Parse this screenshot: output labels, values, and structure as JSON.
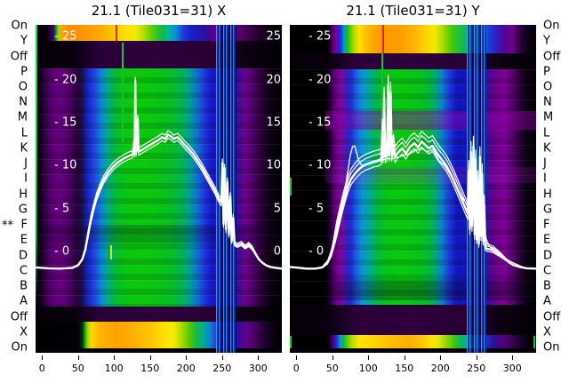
{
  "figure": {
    "background": "#ffffff",
    "text_color": "#000000",
    "curve_color": "#ffffff",
    "inside_tick_label_color": "#ffffff"
  },
  "row_axis": {
    "labels": [
      "On",
      "Y",
      "Off",
      "P",
      "O",
      "N",
      "M",
      "L",
      "K",
      "J",
      "I",
      "H",
      "G",
      "F",
      "E",
      "D",
      "C",
      "B",
      "A",
      "Off",
      "X",
      "On"
    ],
    "star_marker": {
      "text": "**",
      "row": "F",
      "side": "left"
    }
  },
  "chart_data": [
    {
      "type": "heatmap",
      "title": "21.1 (Tile031=31) X",
      "x_ticks": [
        0,
        50,
        100,
        150,
        200,
        250,
        300
      ],
      "x_range": [
        -9,
        333
      ],
      "y_tick_values": [
        25,
        20,
        15,
        10,
        5,
        0
      ],
      "y_tick_labels_left": [
        "- 25",
        "- 20",
        "- 15",
        "- 10",
        "- 5",
        "- 0"
      ],
      "y_tick_labels_right": [
        "25",
        "20",
        "15",
        "10",
        "5",
        "0"
      ],
      "colormap": "dark spectral: black>purple>blue>cyan>green>yellow>orange>red",
      "heatmap_bands": [
        {
          "rows": "On/Y",
          "profile": "high band: orange/yellow center, green-cyan-blue-purple flanks, red line at x~102"
        },
        {
          "rows": "Off",
          "profile": "near zero: black with faint purple strip"
        },
        {
          "rows": "P-A",
          "profile": "mid values: green core x~100-205, cyan/blue flanks, purple columns, black edges, bright blue/cyan vertical streaks x~242-270"
        },
        {
          "rows": "Off",
          "profile": "near zero"
        },
        {
          "rows": "X/On",
          "profile": "high band: yellow/orange center starting sharply at x~60"
        }
      ],
      "series": [
        {
          "name": "beam-profile-x",
          "points": [
            [
              -9,
              -1.85
            ],
            [
              8,
              -1.95
            ],
            [
              25,
              -2.0
            ],
            [
              42,
              -1.9
            ],
            [
              50,
              -1.6
            ],
            [
              56,
              -0.9
            ],
            [
              60,
              0.2
            ],
            [
              64,
              2.0
            ],
            [
              68,
              3.8
            ],
            [
              72,
              5.2
            ],
            [
              76,
              6.4
            ],
            [
              81,
              7.5
            ],
            [
              86,
              8.4
            ],
            [
              92,
              9.2
            ],
            [
              99,
              9.9
            ],
            [
              106,
              10.4
            ],
            [
              113,
              10.8
            ],
            [
              120,
              11.1
            ],
            [
              126,
              11.3
            ],
            [
              127.5,
              12.6
            ],
            [
              128.5,
              11.4
            ],
            [
              129.5,
              19.8
            ],
            [
              130.5,
              11.5
            ],
            [
              132,
              13.2
            ],
            [
              133,
              15.4
            ],
            [
              134,
              11.6
            ],
            [
              138,
              11.8
            ],
            [
              144,
              12.1
            ],
            [
              150,
              12.4
            ],
            [
              156,
              12.7
            ],
            [
              162,
              13.0
            ],
            [
              167,
              13.3
            ],
            [
              171,
              13.1
            ],
            [
              175,
              13.6
            ],
            [
              179,
              13.4
            ],
            [
              183,
              13.1
            ],
            [
              188,
              13.3
            ],
            [
              193,
              12.9
            ],
            [
              198,
              12.4
            ],
            [
              204,
              11.9
            ],
            [
              210,
              11.3
            ],
            [
              216,
              10.6
            ],
            [
              222,
              9.8
            ],
            [
              228,
              8.9
            ],
            [
              234,
              8.0
            ],
            [
              240,
              7.1
            ],
            [
              244,
              6.4
            ],
            [
              247,
              5.9
            ],
            [
              249,
              5.7
            ],
            [
              250.5,
              10.3
            ],
            [
              252,
              3.2
            ],
            [
              253.5,
              9.7
            ],
            [
              255.5,
              2.6
            ],
            [
              257.5,
              8.1
            ],
            [
              259.5,
              2.0
            ],
            [
              261.5,
              6.4
            ],
            [
              263.5,
              1.2
            ],
            [
              265.5,
              3.9
            ],
            [
              267.5,
              0.9
            ],
            [
              271,
              0.7
            ],
            [
              277,
              0.9
            ],
            [
              282,
              0.5
            ],
            [
              287,
              0.8
            ],
            [
              292,
              0.4
            ],
            [
              296,
              -0.2
            ],
            [
              301,
              -0.9
            ],
            [
              306,
              -1.3
            ],
            [
              311,
              -1.6
            ],
            [
              317,
              -1.8
            ],
            [
              325,
              -1.9
            ],
            [
              333,
              -2.0
            ]
          ]
        }
      ],
      "echo_offsets": [
        0.45,
        -0.4
      ]
    },
    {
      "type": "heatmap",
      "title": "21.1 (Tile031=31) Y",
      "x_ticks": [
        0,
        50,
        100,
        150,
        200,
        250,
        300
      ],
      "x_range": [
        -9,
        333
      ],
      "y_tick_values": [
        25,
        20,
        15,
        10,
        5,
        0
      ],
      "y_tick_labels_left": [
        "- 25",
        "- 20",
        "- 15",
        "- 10",
        "- 5",
        "- 0"
      ],
      "y_tick_labels_right": null,
      "colormap": "dark spectral: black>purple>blue>cyan>green>yellow>orange>red",
      "heatmap_bands": [
        {
          "rows": "On/Y",
          "profile": "high band (taller): orange/yellow center, red line at x~118, blue-purple flanks"
        },
        {
          "rows": "Off",
          "profile": "near zero: black with faint purple strip"
        },
        {
          "rows": "P-A",
          "profile": "mid values: green core x~115-200, magenta horizontal stripe at rows M/L, vertical streaks x~238-263"
        },
        {
          "rows": "Off/X",
          "profile": "near zero (taller gap)"
        },
        {
          "rows": "On",
          "profile": "high band: yellow center"
        }
      ],
      "series": [
        {
          "name": "beam-profile-y",
          "points": [
            [
              -9,
              -1.8
            ],
            [
              4,
              -1.9
            ],
            [
              14,
              -2.0
            ],
            [
              26,
              -2.0
            ],
            [
              36,
              -1.85
            ],
            [
              43,
              -1.4
            ],
            [
              48,
              -0.5
            ],
            [
              52,
              0.8
            ],
            [
              56,
              2.3
            ],
            [
              60,
              3.8
            ],
            [
              64,
              5.2
            ],
            [
              68,
              6.5
            ],
            [
              72,
              7.6
            ],
            [
              76,
              8.4
            ],
            [
              80,
              8.9
            ],
            [
              85,
              9.4
            ],
            [
              90,
              9.8
            ],
            [
              96,
              10.1
            ],
            [
              102,
              10.3
            ],
            [
              108,
              10.5
            ],
            [
              114,
              10.6
            ],
            [
              118,
              10.8
            ],
            [
              119.5,
              14.2
            ],
            [
              120.5,
              11.0
            ],
            [
              122,
              17.9
            ],
            [
              123.5,
              11.0
            ],
            [
              126,
              11.1
            ],
            [
              127.5,
              19.3
            ],
            [
              129,
              11.2
            ],
            [
              131,
              18.5
            ],
            [
              132.5,
              11.2
            ],
            [
              135,
              12.4
            ],
            [
              137,
              11.0
            ],
            [
              141,
              11.5
            ],
            [
              147,
              12.0
            ],
            [
              152,
              11.4
            ],
            [
              158,
              12.2
            ],
            [
              164,
              12.6
            ],
            [
              169,
              12.1
            ],
            [
              174,
              12.8
            ],
            [
              179,
              12.4
            ],
            [
              184,
              12.0
            ],
            [
              189,
              12.3
            ],
            [
              194,
              11.6
            ],
            [
              199,
              11.0
            ],
            [
              204,
              10.5
            ],
            [
              209,
              9.9
            ],
            [
              214,
              9.1
            ],
            [
              219,
              8.2
            ],
            [
              224,
              7.2
            ],
            [
              229,
              6.2
            ],
            [
              233,
              5.4
            ],
            [
              236,
              4.8
            ],
            [
              238,
              4.4
            ],
            [
              239.5,
              9.4
            ],
            [
              241,
              2.6
            ],
            [
              242.5,
              11.6
            ],
            [
              244,
              3.0
            ],
            [
              246,
              12.2
            ],
            [
              247.5,
              2.0
            ],
            [
              249,
              10.6
            ],
            [
              250.5,
              1.4
            ],
            [
              252,
              8.2
            ],
            [
              253.5,
              0.9
            ],
            [
              255,
              11.0
            ],
            [
              256.5,
              1.8
            ],
            [
              258,
              9.0
            ],
            [
              259.5,
              1.2
            ],
            [
              261,
              5.4
            ],
            [
              262.5,
              0.5
            ],
            [
              265,
              0.3
            ],
            [
              269,
              0.25
            ],
            [
              274,
              0.1
            ],
            [
              279,
              -0.2
            ],
            [
              284,
              -0.5
            ],
            [
              290,
              -0.9
            ],
            [
              296,
              -1.3
            ],
            [
              302,
              -1.6
            ],
            [
              310,
              -1.8
            ],
            [
              320,
              -1.95
            ],
            [
              333,
              -2.0
            ]
          ]
        },
        {
          "name": "beam-profile-y-trace2",
          "points": [
            [
              36,
              -1.8
            ],
            [
              44,
              -1.0
            ],
            [
              50,
              0.5
            ],
            [
              55,
              2.2
            ],
            [
              60,
              4.0
            ],
            [
              65,
              6.2
            ],
            [
              69,
              8.0
            ],
            [
              72,
              9.6
            ],
            [
              75,
              11.2
            ],
            [
              78,
              12.2
            ],
            [
              81,
              12.3
            ],
            [
              84,
              11.4
            ],
            [
              87,
              10.5
            ],
            [
              90,
              10.1
            ],
            [
              95,
              10.0
            ],
            [
              102,
              10.2
            ],
            [
              110,
              10.4
            ],
            [
              118,
              10.6
            ],
            [
              126,
              10.8
            ],
            [
              134,
              10.8
            ],
            [
              142,
              11.0
            ],
            [
              150,
              11.2
            ],
            [
              158,
              11.4
            ],
            [
              166,
              11.8
            ],
            [
              174,
              12.0
            ],
            [
              182,
              11.6
            ],
            [
              190,
              11.9
            ],
            [
              198,
              10.6
            ],
            [
              206,
              10.0
            ],
            [
              212,
              9.2
            ],
            [
              218,
              8.3
            ],
            [
              224,
              7.3
            ],
            [
              230,
              6.3
            ],
            [
              236,
              5.6
            ],
            [
              242,
              5.2
            ],
            [
              248,
              4.6
            ],
            [
              252,
              4.2
            ],
            [
              256,
              3.6
            ],
            [
              260,
              2.8
            ],
            [
              264,
              1.4
            ],
            [
              268,
              0.6
            ],
            [
              274,
              0.2
            ],
            [
              282,
              -0.3
            ],
            [
              290,
              -0.8
            ],
            [
              298,
              -1.2
            ],
            [
              306,
              -1.5
            ],
            [
              314,
              -1.8
            ]
          ]
        }
      ],
      "echo_offsets": [
        0.7,
        -0.65,
        1.2
      ]
    }
  ]
}
